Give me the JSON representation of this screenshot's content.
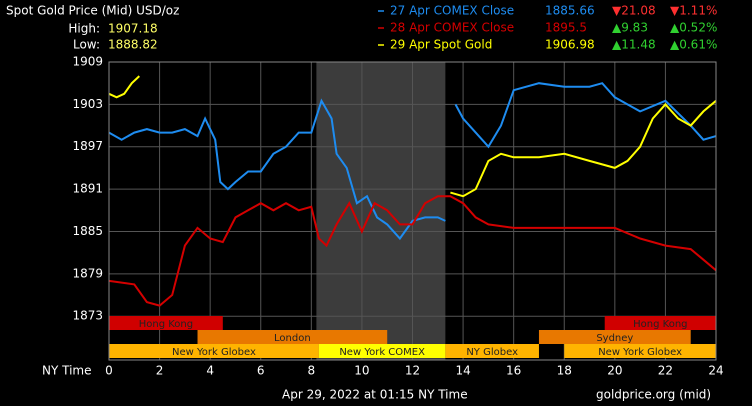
{
  "chart_data": {
    "type": "line",
    "title": "Spot Gold Price (Mid) USD/oz",
    "high_label": "High:",
    "high": 1907.18,
    "low_label": "Low:",
    "low": 1888.82,
    "x_label": "NY Time",
    "footer_date": "Apr 29, 2022 at 01:15 NY Time",
    "footer_source": "goldprice.org (mid)",
    "xlim": [
      0,
      24
    ],
    "xticks": [
      0,
      2,
      4,
      6,
      8,
      10,
      12,
      14,
      16,
      18,
      20,
      22,
      24
    ],
    "ylim": [
      1866.8,
      1909
    ],
    "yticks": [
      1873,
      1879,
      1885,
      1891,
      1897,
      1903,
      1909
    ],
    "grid": true,
    "shaded_range": [
      8.2,
      13.3
    ],
    "series": [
      {
        "name": "27 Apr COMEX Close",
        "color": "#1e8cf0",
        "close": 1885.66,
        "change": {
          "value": -21.08,
          "label": "▼21.08"
        },
        "change_pct": {
          "value": -1.11,
          "label": "▼1.11%"
        },
        "x": [
          0,
          0.5,
          1,
          1.5,
          2,
          2.5,
          3,
          3.5,
          3.8,
          4.2,
          4.4,
          4.7,
          5,
          5.5,
          6,
          6.5,
          7,
          7.5,
          8,
          8.4,
          8.8,
          9,
          9.4,
          9.8,
          10.2,
          10.6,
          11,
          11.5,
          12,
          12.5,
          13,
          13.3,
          13.5,
          13.7,
          14,
          14.5,
          15,
          15.5,
          16,
          17,
          18,
          19,
          19.5,
          20,
          21,
          22,
          23,
          23.5,
          24
        ],
        "values": [
          1899,
          1898,
          1899,
          1899.5,
          1899,
          1899,
          1899.5,
          1898.5,
          1901,
          1898,
          1892,
          1891,
          1892,
          1893.5,
          1893.5,
          1896,
          1897,
          1899,
          1899,
          1903.5,
          1901,
          1896,
          1894,
          1889,
          1890,
          1887,
          1886,
          1884,
          1886.5,
          1887,
          1887,
          1886.5,
          null,
          1903,
          1901,
          1899,
          1897,
          1900,
          1905,
          1906,
          1905.5,
          1905.5,
          1906,
          1904,
          1902,
          1903.5,
          1900,
          1898,
          1898.5
        ]
      },
      {
        "name": "28 Apr COMEX Close",
        "color": "#d40000",
        "close": 1895.5,
        "change": {
          "value": 9.83,
          "label": "▲9.83"
        },
        "change_pct": {
          "value": 0.52,
          "label": "▲0.52%"
        },
        "x": [
          0,
          1,
          1.5,
          2,
          2.5,
          3,
          3.5,
          4,
          4.5,
          5,
          5.5,
          6,
          6.5,
          7,
          7.5,
          8,
          8.3,
          8.6,
          9,
          9.5,
          10,
          10.5,
          11,
          11.5,
          12,
          12.5,
          13,
          13.5,
          14,
          14.5,
          15,
          16,
          17,
          18,
          19,
          20,
          21,
          22,
          23,
          23.5,
          24
        ],
        "values": [
          1878,
          1877.5,
          1875,
          1874.5,
          1876,
          1883,
          1885.5,
          1884,
          1883.5,
          1887,
          1888,
          1889,
          1888,
          1889,
          1888,
          1888.5,
          1884,
          1883,
          1886,
          1889,
          1885,
          1889,
          1888,
          1886,
          1886,
          1889,
          1890,
          1890,
          1889,
          1887,
          1886,
          1885.5,
          1885.5,
          1885.5,
          1885.5,
          1885.5,
          1884,
          1883,
          1882.5,
          1881,
          1879.5
        ]
      },
      {
        "name": "29 Apr Spot Gold",
        "color": "#ffff00",
        "close": 1906.98,
        "change": {
          "value": 11.48,
          "label": "▲11.48"
        },
        "change_pct": {
          "value": 0.61,
          "label": "▲0.61%"
        },
        "x": [
          0,
          0.3,
          0.6,
          0.9,
          1.2,
          7,
          13.5,
          14,
          14.5,
          15,
          15.5,
          16,
          17,
          18,
          19,
          19.5,
          20,
          20.5,
          21,
          21.5,
          22,
          22.5,
          23,
          23.5,
          24
        ],
        "values": [
          1904.5,
          1904,
          1904.5,
          1906,
          1907,
          null,
          1890.5,
          1890,
          1891,
          1895,
          1896,
          1895.5,
          1895.5,
          1896,
          1895,
          1894.5,
          1894,
          1895,
          1897,
          1901,
          1903,
          1901,
          1900,
          1902,
          1903.5
        ]
      }
    ],
    "sessions": [
      {
        "label": "Hong Kong",
        "start": 0,
        "end": 4.5,
        "row": 0,
        "color": "#d00000"
      },
      {
        "label": "Hong Kong",
        "start": 19.6,
        "end": 24,
        "row": 0,
        "color": "#d00000"
      },
      {
        "label": "London",
        "start": 3.5,
        "end": 11,
        "row": 1,
        "color": "#e87800"
      },
      {
        "label": "Sydney",
        "start": 17,
        "end": 23,
        "row": 1,
        "color": "#e87800"
      },
      {
        "label": "New York Globex",
        "start": 0,
        "end": 8.3,
        "row": 2,
        "color": "#ffb400"
      },
      {
        "label": "New York COMEX",
        "start": 8.3,
        "end": 13.3,
        "row": 2,
        "color": "#ffff00"
      },
      {
        "label": "NY Globex",
        "start": 13.3,
        "end": 17,
        "row": 2,
        "color": "#ffb400"
      },
      {
        "label": "New York Globex",
        "start": 18,
        "end": 24,
        "row": 2,
        "color": "#ffb400"
      }
    ]
  }
}
